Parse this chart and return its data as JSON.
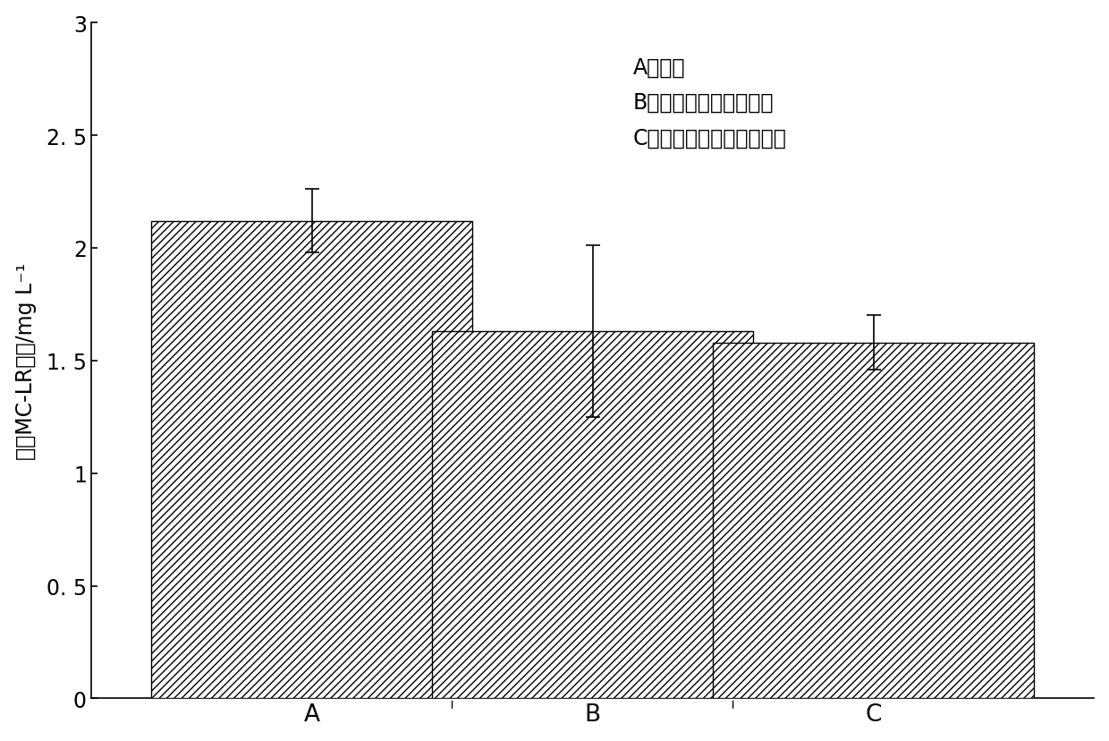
{
  "categories": [
    "A",
    "B",
    "C"
  ],
  "values": [
    2.12,
    1.63,
    1.58
  ],
  "errors": [
    0.14,
    0.38,
    0.12
  ],
  "ylabel_parts": [
    "胞外MC-LR浓度/mg L",
    "-1"
  ],
  "ylim": [
    0,
    3.0
  ],
  "ytick_values": [
    0,
    0.5,
    1.0,
    1.5,
    2.0,
    2.5,
    3.0
  ],
  "ytick_labels": [
    "0",
    "0. 5",
    "1",
    "1. 5",
    "2",
    "2. 5",
    "3"
  ],
  "legend_lines": [
    "A：空白",
    "B：加铜绻假单胞菌菌体",
    "C：加铜绻假单胞菌发酵液"
  ],
  "bar_color": "#ffffff",
  "hatch_pattern": "////",
  "background_color": "#ffffff",
  "legend_fontsize": 17,
  "tick_fontsize": 17,
  "ylabel_fontsize": 17,
  "xlabel_fontsize": 19,
  "bar_width": 0.32,
  "bar_positions": [
    0.25,
    0.5,
    0.75
  ],
  "xlim": [
    0,
    1.0
  ]
}
